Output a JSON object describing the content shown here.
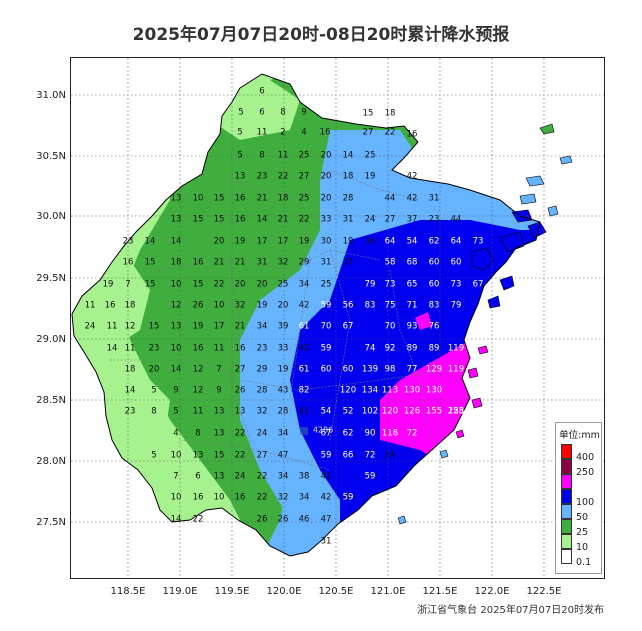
{
  "title": "2025年07月07日20时-08日20时累计降水预报",
  "footer": "浙江省气象台 2025年07月07日20时发布",
  "lat_labels": [
    "31.0N",
    "30.5N",
    "30.0N",
    "29.5N",
    "29.0N",
    "28.5N",
    "28.0N",
    "27.5N"
  ],
  "lon_labels": [
    "118.5E",
    "119.0E",
    "119.5E",
    "120.0E",
    "120.5E",
    "121.0E",
    "121.5E",
    "122.0E",
    "122.5E"
  ],
  "station_marker": "4286",
  "legend": {
    "title": "单位:mm",
    "items": [
      {
        "label": "400",
        "color": "#ff0000"
      },
      {
        "label": "250",
        "color": "#8b0045"
      },
      {
        "label": "",
        "color": "#ff00ff"
      },
      {
        "label": "100",
        "color": "#0000ee"
      },
      {
        "label": "50",
        "color": "#66b3ff"
      },
      {
        "label": "25",
        "color": "#3fae3f"
      },
      {
        "label": "10",
        "color": "#a6f28f"
      },
      {
        "label": "0.1",
        "color": "#ffffff"
      }
    ]
  },
  "colors": {
    "magenta": "#ff00ff",
    "blue": "#0000ee",
    "lightblue": "#66b3ff",
    "green": "#3fae3f",
    "lightgreen": "#a6f28f"
  },
  "values": [
    {
      "t": "6",
      "w": 0
    },
    {
      "t": "5",
      "w": 0
    },
    {
      "t": "6",
      "w": 0
    },
    {
      "t": "8",
      "w": 0
    },
    {
      "t": "9",
      "w": 0
    },
    {
      "t": "15",
      "w": 0
    },
    {
      "t": "18",
      "w": 0
    },
    {
      "t": "5",
      "w": 0
    },
    {
      "t": "11",
      "w": 0
    },
    {
      "t": "2",
      "w": 0
    },
    {
      "t": "4",
      "w": 0
    },
    {
      "t": "16",
      "w": 0
    },
    {
      "t": "27",
      "w": 0
    },
    {
      "t": "22",
      "w": 0
    },
    {
      "t": "16",
      "w": 0
    },
    {
      "t": "5",
      "w": 0
    },
    {
      "t": "8",
      "w": 0
    },
    {
      "t": "11",
      "w": 0
    },
    {
      "t": "25",
      "w": 0
    },
    {
      "t": "20",
      "w": 0
    },
    {
      "t": "14",
      "w": 0
    },
    {
      "t": "25",
      "w": 0
    },
    {
      "t": "13",
      "w": 0
    },
    {
      "t": "23",
      "w": 0
    },
    {
      "t": "22",
      "w": 0
    },
    {
      "t": "27",
      "w": 0
    },
    {
      "t": "20",
      "w": 0
    },
    {
      "t": "18",
      "w": 0
    },
    {
      "t": "19",
      "w": 0
    },
    {
      "t": "42",
      "w": 0
    },
    {
      "t": "13",
      "w": 0
    },
    {
      "t": "10",
      "w": 0
    },
    {
      "t": "15",
      "w": 0
    },
    {
      "t": "16",
      "w": 0
    },
    {
      "t": "21",
      "w": 0
    },
    {
      "t": "18",
      "w": 0
    },
    {
      "t": "25",
      "w": 0
    },
    {
      "t": "20",
      "w": 0
    },
    {
      "t": "28",
      "w": 0
    },
    {
      "t": "44",
      "w": 0
    },
    {
      "t": "42",
      "w": 0
    },
    {
      "t": "31",
      "w": 0
    },
    {
      "t": "13",
      "w": 0
    },
    {
      "t": "15",
      "w": 0
    },
    {
      "t": "15",
      "w": 0
    },
    {
      "t": "16",
      "w": 0
    },
    {
      "t": "14",
      "w": 0
    },
    {
      "t": "21",
      "w": 0
    },
    {
      "t": "22",
      "w": 0
    },
    {
      "t": "33",
      "w": 0
    },
    {
      "t": "31",
      "w": 0
    },
    {
      "t": "24",
      "w": 0
    },
    {
      "t": "27",
      "w": 0
    },
    {
      "t": "37",
      "w": 0
    },
    {
      "t": "23",
      "w": 0
    },
    {
      "t": "44",
      "w": 0
    },
    {
      "t": "23",
      "w": 0
    },
    {
      "t": "14",
      "w": 0
    },
    {
      "t": "14",
      "w": 0
    },
    {
      "t": "20",
      "w": 0
    },
    {
      "t": "19",
      "w": 0
    },
    {
      "t": "17",
      "w": 0
    },
    {
      "t": "17",
      "w": 0
    },
    {
      "t": "19",
      "w": 0
    },
    {
      "t": "30",
      "w": 0
    },
    {
      "t": "19",
      "w": 0
    },
    {
      "t": "34",
      "w": 0
    },
    {
      "t": "64",
      "w": 1
    },
    {
      "t": "54",
      "w": 1
    },
    {
      "t": "62",
      "w": 1
    },
    {
      "t": "64",
      "w": 1
    },
    {
      "t": "73",
      "w": 1
    },
    {
      "t": "16",
      "w": 0
    },
    {
      "t": "15",
      "w": 0
    },
    {
      "t": "18",
      "w": 0
    },
    {
      "t": "16",
      "w": 0
    },
    {
      "t": "21",
      "w": 0
    },
    {
      "t": "21",
      "w": 0
    },
    {
      "t": "31",
      "w": 0
    },
    {
      "t": "32",
      "w": 0
    },
    {
      "t": "29",
      "w": 0
    },
    {
      "t": "31",
      "w": 0
    },
    {
      "t": "37",
      "w": 0
    },
    {
      "t": "58",
      "w": 1
    },
    {
      "t": "68",
      "w": 1
    },
    {
      "t": "60",
      "w": 1
    },
    {
      "t": "60",
      "w": 1
    },
    {
      "t": "19",
      "w": 0
    },
    {
      "t": "7",
      "w": 0
    },
    {
      "t": "15",
      "w": 0
    },
    {
      "t": "10",
      "w": 0
    },
    {
      "t": "15",
      "w": 0
    },
    {
      "t": "22",
      "w": 0
    },
    {
      "t": "20",
      "w": 0
    },
    {
      "t": "20",
      "w": 0
    },
    {
      "t": "25",
      "w": 0
    },
    {
      "t": "34",
      "w": 0
    },
    {
      "t": "25",
      "w": 0
    },
    {
      "t": "79",
      "w": 1
    },
    {
      "t": "73",
      "w": 1
    },
    {
      "t": "65",
      "w": 1
    },
    {
      "t": "60",
      "w": 1
    },
    {
      "t": "73",
      "w": 1
    },
    {
      "t": "67",
      "w": 1
    },
    {
      "t": "11",
      "w": 0
    },
    {
      "t": "16",
      "w": 0
    },
    {
      "t": "18",
      "w": 0
    },
    {
      "t": "12",
      "w": 0
    },
    {
      "t": "26",
      "w": 0
    },
    {
      "t": "10",
      "w": 0
    },
    {
      "t": "32",
      "w": 0
    },
    {
      "t": "19",
      "w": 0
    },
    {
      "t": "20",
      "w": 0
    },
    {
      "t": "42",
      "w": 0
    },
    {
      "t": "59",
      "w": 1
    },
    {
      "t": "56",
      "w": 1
    },
    {
      "t": "83",
      "w": 1
    },
    {
      "t": "75",
      "w": 1
    },
    {
      "t": "71",
      "w": 1
    },
    {
      "t": "83",
      "w": 1
    },
    {
      "t": "79",
      "w": 1
    },
    {
      "t": "24",
      "w": 0
    },
    {
      "t": "11",
      "w": 0
    },
    {
      "t": "12",
      "w": 0
    },
    {
      "t": "15",
      "w": 0
    },
    {
      "t": "13",
      "w": 0
    },
    {
      "t": "19",
      "w": 0
    },
    {
      "t": "17",
      "w": 0
    },
    {
      "t": "21",
      "w": 0
    },
    {
      "t": "34",
      "w": 0
    },
    {
      "t": "39",
      "w": 0
    },
    {
      "t": "61",
      "w": 1
    },
    {
      "t": "70",
      "w": 1
    },
    {
      "t": "67",
      "w": 1
    },
    {
      "t": "70",
      "w": 1
    },
    {
      "t": "93",
      "w": 1
    },
    {
      "t": "76",
      "w": 1
    },
    {
      "t": "14",
      "w": 0
    },
    {
      "t": "11",
      "w": 0
    },
    {
      "t": "23",
      "w": 0
    },
    {
      "t": "10",
      "w": 0
    },
    {
      "t": "16",
      "w": 0
    },
    {
      "t": "11",
      "w": 0
    },
    {
      "t": "16",
      "w": 0
    },
    {
      "t": "23",
      "w": 0
    },
    {
      "t": "33",
      "w": 0
    },
    {
      "t": "42",
      "w": 0
    },
    {
      "t": "59",
      "w": 1
    },
    {
      "t": "74",
      "w": 1
    },
    {
      "t": "92",
      "w": 1
    },
    {
      "t": "89",
      "w": 1
    },
    {
      "t": "89",
      "w": 1
    },
    {
      "t": "119",
      "w": 1
    },
    {
      "t": "18",
      "w": 0
    },
    {
      "t": "20",
      "w": 0
    },
    {
      "t": "14",
      "w": 0
    },
    {
      "t": "12",
      "w": 0
    },
    {
      "t": "7",
      "w": 0
    },
    {
      "t": "27",
      "w": 0
    },
    {
      "t": "29",
      "w": 0
    },
    {
      "t": "19",
      "w": 0
    },
    {
      "t": "61",
      "w": 1
    },
    {
      "t": "60",
      "w": 1
    },
    {
      "t": "60",
      "w": 1
    },
    {
      "t": "139",
      "w": 1
    },
    {
      "t": "98",
      "w": 1
    },
    {
      "t": "77",
      "w": 1
    },
    {
      "t": "129",
      "w": 1
    },
    {
      "t": "119",
      "w": 1
    },
    {
      "t": "14",
      "w": 0
    },
    {
      "t": "5",
      "w": 0
    },
    {
      "t": "9",
      "w": 0
    },
    {
      "t": "12",
      "w": 0
    },
    {
      "t": "9",
      "w": 0
    },
    {
      "t": "26",
      "w": 0
    },
    {
      "t": "28",
      "w": 0
    },
    {
      "t": "43",
      "w": 0
    },
    {
      "t": "82",
      "w": 1
    },
    {
      "t": "120",
      "w": 1
    },
    {
      "t": "134",
      "w": 1
    },
    {
      "t": "113",
      "w": 1
    },
    {
      "t": "130",
      "w": 1
    },
    {
      "t": "130",
      "w": 1
    },
    {
      "t": "23",
      "w": 0
    },
    {
      "t": "8",
      "w": 0
    },
    {
      "t": "5",
      "w": 0
    },
    {
      "t": "11",
      "w": 0
    },
    {
      "t": "13",
      "w": 0
    },
    {
      "t": "13",
      "w": 0
    },
    {
      "t": "32",
      "w": 0
    },
    {
      "t": "28",
      "w": 0
    },
    {
      "t": "41",
      "w": 0
    },
    {
      "t": "54",
      "w": 1
    },
    {
      "t": "52",
      "w": 1
    },
    {
      "t": "102",
      "w": 1
    },
    {
      "t": "120",
      "w": 1
    },
    {
      "t": "126",
      "w": 1
    },
    {
      "t": "155",
      "w": 1
    },
    {
      "t": "155",
      "w": 1
    },
    {
      "t": "228",
      "w": 1
    },
    {
      "t": "4",
      "w": 0
    },
    {
      "t": "8",
      "w": 0
    },
    {
      "t": "13",
      "w": 0
    },
    {
      "t": "22",
      "w": 0
    },
    {
      "t": "24",
      "w": 0
    },
    {
      "t": "34",
      "w": 0
    },
    {
      "t": "67",
      "w": 1
    },
    {
      "t": "62",
      "w": 1
    },
    {
      "t": "90",
      "w": 1
    },
    {
      "t": "118",
      "w": 1
    },
    {
      "t": "72",
      "w": 1
    },
    {
      "t": "5",
      "w": 0
    },
    {
      "t": "10",
      "w": 0
    },
    {
      "t": "13",
      "w": 0
    },
    {
      "t": "15",
      "w": 0
    },
    {
      "t": "22",
      "w": 0
    },
    {
      "t": "27",
      "w": 0
    },
    {
      "t": "47",
      "w": 0
    },
    {
      "t": "59",
      "w": 1
    },
    {
      "t": "66",
      "w": 1
    },
    {
      "t": "72",
      "w": 1
    },
    {
      "t": "14",
      "w": 0
    },
    {
      "t": "7",
      "w": 0
    },
    {
      "t": "6",
      "w": 0
    },
    {
      "t": "13",
      "w": 0
    },
    {
      "t": "24",
      "w": 0
    },
    {
      "t": "22",
      "w": 0
    },
    {
      "t": "34",
      "w": 0
    },
    {
      "t": "38",
      "w": 0
    },
    {
      "t": "41",
      "w": 0
    },
    {
      "t": "59",
      "w": 1
    },
    {
      "t": "10",
      "w": 0
    },
    {
      "t": "16",
      "w": 0
    },
    {
      "t": "10",
      "w": 0
    },
    {
      "t": "16",
      "w": 0
    },
    {
      "t": "22",
      "w": 0
    },
    {
      "t": "32",
      "w": 0
    },
    {
      "t": "34",
      "w": 0
    },
    {
      "t": "42",
      "w": 0
    },
    {
      "t": "46",
      "w": 0
    },
    {
      "t": "59",
      "w": 1
    },
    {
      "t": "14",
      "w": 0
    },
    {
      "t": "22",
      "w": 0
    },
    {
      "t": "26",
      "w": 0
    },
    {
      "t": "26",
      "w": 0
    },
    {
      "t": "46",
      "w": 0
    },
    {
      "t": "47",
      "w": 0
    },
    {
      "t": "31",
      "w": 0
    }
  ]
}
